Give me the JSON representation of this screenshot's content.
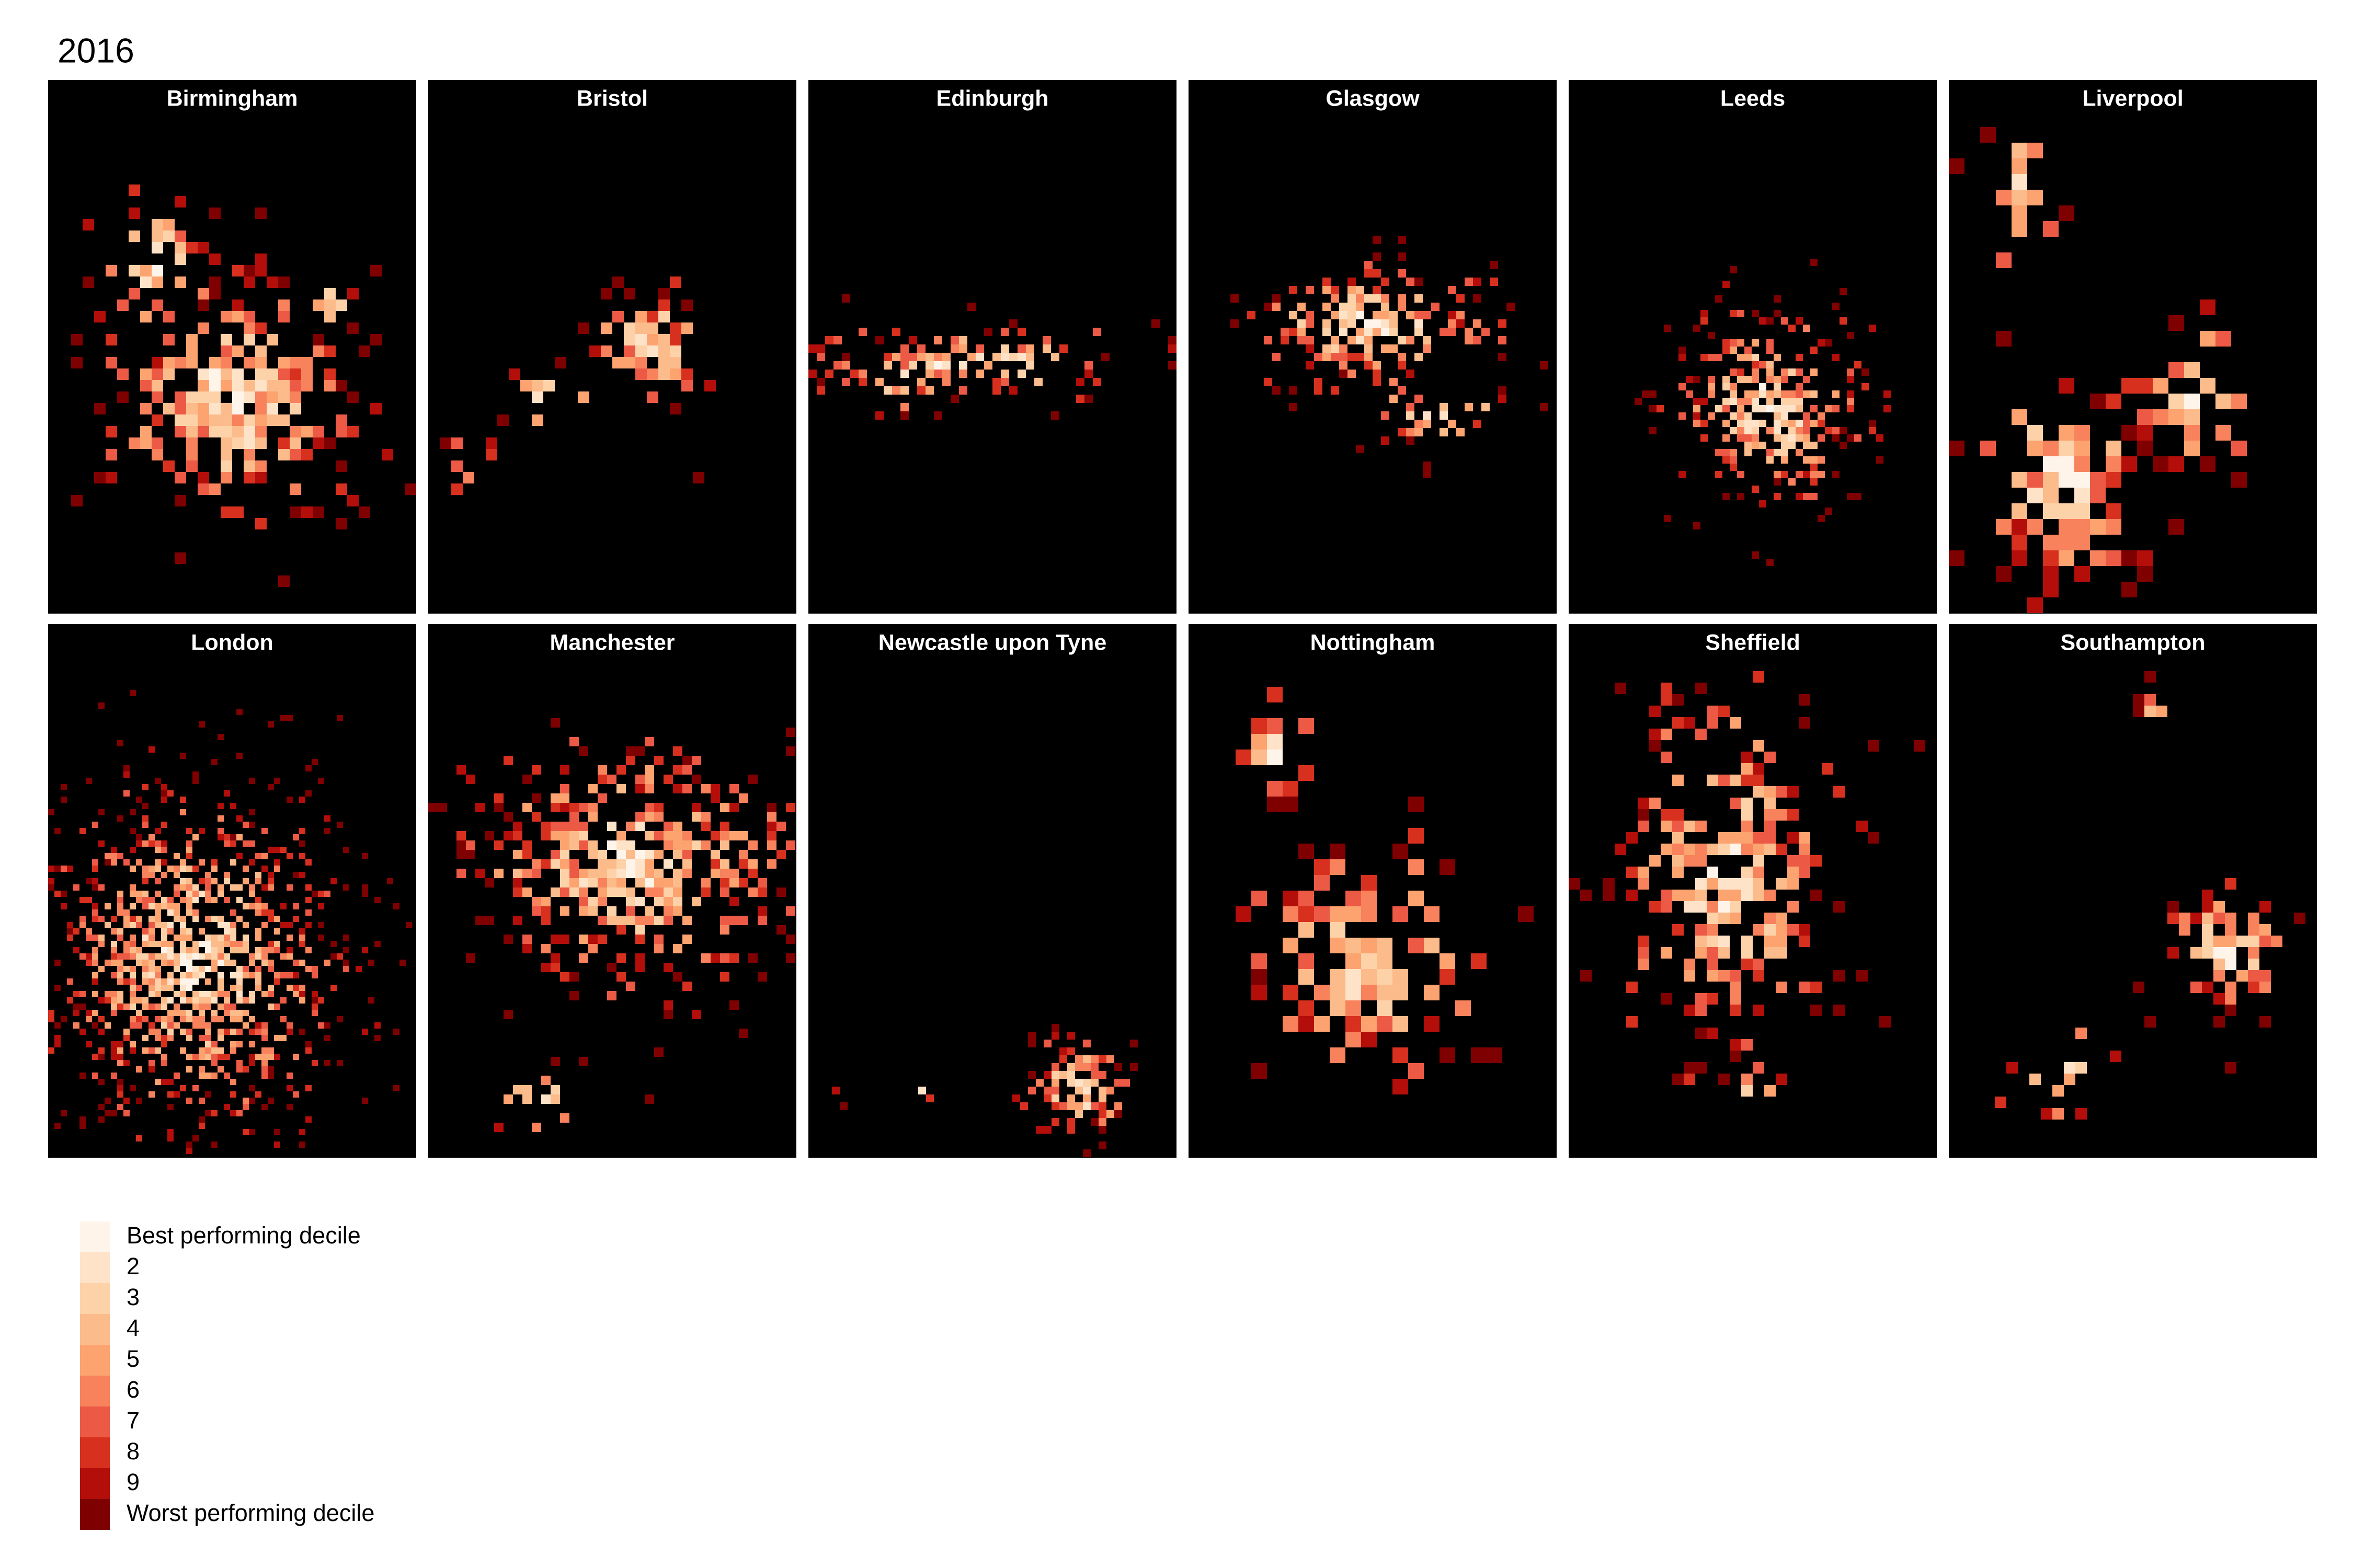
{
  "title": "2016",
  "panels": [
    "Birmingham",
    "Bristol",
    "Edinburgh",
    "Glasgow",
    "Leeds",
    "Liverpool",
    "London",
    "Manchester",
    "Newcastle upon Tyne",
    "Nottingham",
    "Sheffield",
    "Southampton"
  ],
  "legend": {
    "entries": [
      {
        "label": "Best performing decile",
        "color": "#fff4ea"
      },
      {
        "label": "2",
        "color": "#fee3c8"
      },
      {
        "label": "3",
        "color": "#fdd2a8"
      },
      {
        "label": "4",
        "color": "#fcbb8a"
      },
      {
        "label": "5",
        "color": "#fca370"
      },
      {
        "label": "6",
        "color": "#f7825c"
      },
      {
        "label": "7",
        "color": "#ec5a45"
      },
      {
        "label": "8",
        "color": "#d7301f"
      },
      {
        "label": "9",
        "color": "#b30e0a"
      },
      {
        "label": "Worst performing decile",
        "color": "#7f0000"
      }
    ]
  }
}
